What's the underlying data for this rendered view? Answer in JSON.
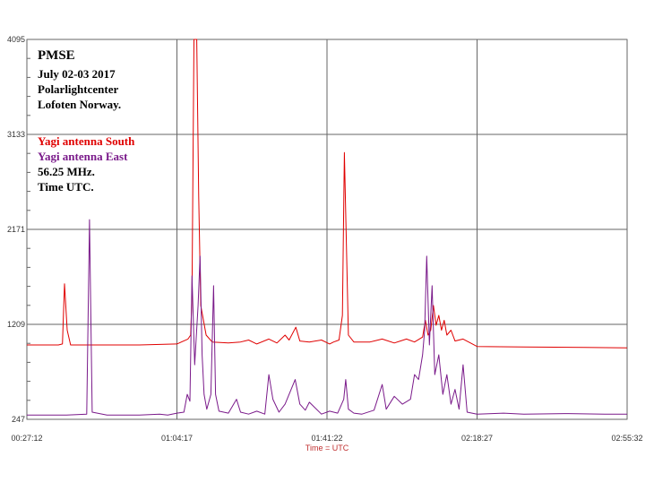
{
  "chart_data": {
    "type": "line",
    "xlabel": "Time = UTC",
    "ylabel": "",
    "x_ticks": [
      "00:27:12",
      "01:04:17",
      "01:41:22",
      "02:18:27",
      "02:55:32"
    ],
    "y_ticks": [
      4095,
      3133,
      2171,
      1209,
      247
    ],
    "ylim": [
      247,
      4095
    ],
    "xlim": [
      "00:27:12",
      "02:55:32"
    ],
    "grid": true,
    "annotations": {
      "title": "PMSE",
      "date": "July 02-03 2017",
      "place": "Polarlightcenter",
      "location": "Lofoten Norway.",
      "frequency": "56.25 MHz.",
      "time_note": "Time UTC."
    },
    "series": [
      {
        "name": "Yagi antenna South",
        "color": "#e00000",
        "points": [
          [
            "00:27:12",
            1000
          ],
          [
            "00:35:00",
            1000
          ],
          [
            "00:36:00",
            1010
          ],
          [
            "00:36:30",
            1620
          ],
          [
            "00:37:10",
            1150
          ],
          [
            "00:38:00",
            1000
          ],
          [
            "00:47:00",
            1000
          ],
          [
            "00:55:00",
            1000
          ],
          [
            "01:04:17",
            1010
          ],
          [
            "01:07:00",
            1060
          ],
          [
            "01:07:40",
            1100
          ],
          [
            "01:08:00",
            1500
          ],
          [
            "01:08:30",
            4095
          ],
          [
            "01:09:10",
            4095
          ],
          [
            "01:09:40",
            2500
          ],
          [
            "01:10:10",
            1400
          ],
          [
            "01:10:50",
            1250
          ],
          [
            "01:11:30",
            1100
          ],
          [
            "01:13:00",
            1030
          ],
          [
            "01:17:00",
            1020
          ],
          [
            "01:20:00",
            1030
          ],
          [
            "01:22:00",
            1050
          ],
          [
            "01:24:00",
            1010
          ],
          [
            "01:27:00",
            1060
          ],
          [
            "01:29:00",
            1020
          ],
          [
            "01:31:00",
            1100
          ],
          [
            "01:32:00",
            1050
          ],
          [
            "01:33:40",
            1180
          ],
          [
            "01:34:40",
            1040
          ],
          [
            "01:37:00",
            1030
          ],
          [
            "01:40:00",
            1050
          ],
          [
            "01:42:00",
            1010
          ],
          [
            "01:43:00",
            1030
          ],
          [
            "01:44:20",
            1050
          ],
          [
            "01:45:10",
            1300
          ],
          [
            "01:45:40",
            2950
          ],
          [
            "01:46:10",
            2000
          ],
          [
            "01:46:40",
            1100
          ],
          [
            "01:48:00",
            1030
          ],
          [
            "01:52:00",
            1030
          ],
          [
            "01:55:00",
            1060
          ],
          [
            "01:58:00",
            1020
          ],
          [
            "02:01:00",
            1060
          ],
          [
            "02:03:00",
            1030
          ],
          [
            "02:05:00",
            1080
          ],
          [
            "02:05:40",
            1250
          ],
          [
            "02:06:20",
            1100
          ],
          [
            "02:07:00",
            1150
          ],
          [
            "02:07:40",
            1400
          ],
          [
            "02:08:20",
            1200
          ],
          [
            "02:09:00",
            1300
          ],
          [
            "02:09:40",
            1150
          ],
          [
            "02:10:20",
            1250
          ],
          [
            "02:11:00",
            1100
          ],
          [
            "02:12:00",
            1150
          ],
          [
            "02:13:00",
            1040
          ],
          [
            "02:15:00",
            1060
          ],
          [
            "02:18:27",
            985
          ],
          [
            "02:30:00",
            980
          ],
          [
            "02:45:00",
            975
          ],
          [
            "02:55:32",
            970
          ]
        ]
      },
      {
        "name": "Yagi antenna East",
        "color": "#7a1a8a",
        "points": [
          [
            "00:27:12",
            290
          ],
          [
            "00:37:00",
            290
          ],
          [
            "00:42:00",
            300
          ],
          [
            "00:42:40",
            2270
          ],
          [
            "00:43:20",
            320
          ],
          [
            "00:47:00",
            290
          ],
          [
            "00:55:00",
            290
          ],
          [
            "01:00:00",
            300
          ],
          [
            "01:02:00",
            290
          ],
          [
            "01:04:17",
            310
          ],
          [
            "01:06:00",
            320
          ],
          [
            "01:06:50",
            500
          ],
          [
            "01:07:30",
            430
          ],
          [
            "01:08:00",
            1700
          ],
          [
            "01:08:40",
            800
          ],
          [
            "01:09:30",
            1400
          ],
          [
            "01:10:00",
            1900
          ],
          [
            "01:10:30",
            900
          ],
          [
            "01:11:00",
            500
          ],
          [
            "01:11:40",
            350
          ],
          [
            "01:12:40",
            500
          ],
          [
            "01:13:20",
            1600
          ],
          [
            "01:13:50",
            500
          ],
          [
            "01:14:40",
            330
          ],
          [
            "01:17:00",
            310
          ],
          [
            "01:19:00",
            450
          ],
          [
            "01:20:00",
            320
          ],
          [
            "01:22:00",
            300
          ],
          [
            "01:24:00",
            330
          ],
          [
            "01:26:00",
            300
          ],
          [
            "01:27:00",
            700
          ],
          [
            "01:28:00",
            450
          ],
          [
            "01:29:30",
            320
          ],
          [
            "01:31:00",
            400
          ],
          [
            "01:33:30",
            650
          ],
          [
            "01:34:40",
            400
          ],
          [
            "01:36:00",
            340
          ],
          [
            "01:37:00",
            420
          ],
          [
            "01:40:00",
            300
          ],
          [
            "01:42:00",
            330
          ],
          [
            "01:44:00",
            310
          ],
          [
            "01:45:30",
            450
          ],
          [
            "01:46:00",
            650
          ],
          [
            "01:46:40",
            350
          ],
          [
            "01:48:00",
            310
          ],
          [
            "01:50:00",
            300
          ],
          [
            "01:53:00",
            340
          ],
          [
            "01:55:00",
            600
          ],
          [
            "01:56:00",
            350
          ],
          [
            "01:58:00",
            480
          ],
          [
            "02:00:00",
            400
          ],
          [
            "02:02:00",
            450
          ],
          [
            "02:03:00",
            700
          ],
          [
            "02:04:00",
            650
          ],
          [
            "02:05:00",
            900
          ],
          [
            "02:05:30",
            1150
          ],
          [
            "02:06:00",
            1900
          ],
          [
            "02:06:40",
            1000
          ],
          [
            "02:07:20",
            1600
          ],
          [
            "02:08:00",
            700
          ],
          [
            "02:09:00",
            900
          ],
          [
            "02:10:00",
            500
          ],
          [
            "02:11:00",
            700
          ],
          [
            "02:12:00",
            400
          ],
          [
            "02:13:00",
            550
          ],
          [
            "02:14:00",
            350
          ],
          [
            "02:15:00",
            800
          ],
          [
            "02:16:00",
            320
          ],
          [
            "02:18:27",
            300
          ],
          [
            "02:25:00",
            310
          ],
          [
            "02:30:00",
            300
          ],
          [
            "02:40:00",
            305
          ],
          [
            "02:50:00",
            300
          ],
          [
            "02:55:32",
            300
          ]
        ]
      }
    ]
  }
}
